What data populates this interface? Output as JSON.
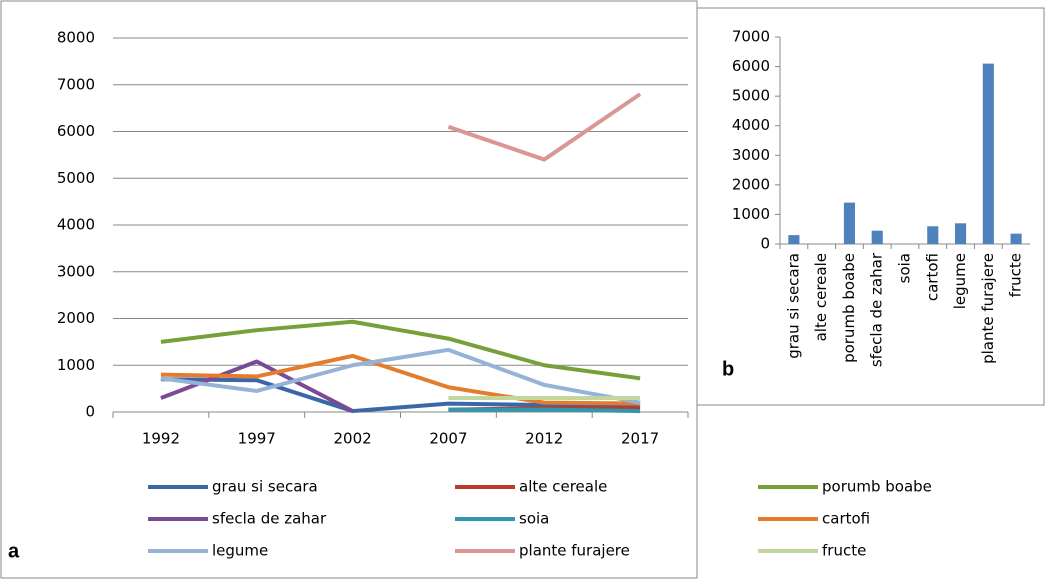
{
  "chart_data": [
    {
      "type": "line",
      "label": "a",
      "categories": [
        "1992",
        "1997",
        "2002",
        "2007",
        "2012",
        "2017"
      ],
      "ylim": [
        0,
        8000
      ],
      "yticks": [
        0,
        1000,
        2000,
        3000,
        4000,
        5000,
        6000,
        7000,
        8000
      ],
      "grid": true,
      "series": [
        {
          "name": "grau si secara",
          "color": "#3b67a8",
          "values": [
            700,
            680,
            20,
            180,
            150,
            130
          ]
        },
        {
          "name": "alte cereale",
          "color": "#b93a2e",
          "values": [
            null,
            null,
            null,
            50,
            80,
            80
          ]
        },
        {
          "name": "porumb boabe",
          "color": "#77a03a",
          "values": [
            1500,
            1750,
            1930,
            1570,
            1000,
            720
          ]
        },
        {
          "name": "sfecla de zahar",
          "color": "#7a4a94",
          "values": [
            300,
            1080,
            20,
            null,
            null,
            null
          ]
        },
        {
          "name": "soia",
          "color": "#2f98ad",
          "values": [
            null,
            null,
            null,
            50,
            50,
            20
          ]
        },
        {
          "name": "cartofi",
          "color": "#e57c2c",
          "values": [
            800,
            760,
            1200,
            530,
            200,
            180
          ]
        },
        {
          "name": "legume",
          "color": "#95b3d7",
          "values": [
            720,
            450,
            1000,
            1330,
            580,
            200
          ]
        },
        {
          "name": "plante furajere",
          "color": "#d99694",
          "values": [
            null,
            null,
            null,
            6100,
            5400,
            6800
          ]
        },
        {
          "name": "fructe",
          "color": "#c3d69b",
          "values": [
            null,
            null,
            null,
            300,
            300,
            300
          ]
        }
      ]
    },
    {
      "type": "bar",
      "label": "b",
      "color": "#4f81bd",
      "categories": [
        "grau si secara",
        "alte cereale",
        "porumb boabe",
        "sfecla de zahar",
        "soia",
        "cartofi",
        "legume",
        "plante furajere",
        "fructe"
      ],
      "values": [
        300,
        0,
        1400,
        450,
        0,
        600,
        700,
        6100,
        350
      ],
      "ylim": [
        0,
        7000
      ],
      "yticks": [
        0,
        1000,
        2000,
        3000,
        4000,
        5000,
        6000,
        7000
      ],
      "grid": false
    }
  ]
}
